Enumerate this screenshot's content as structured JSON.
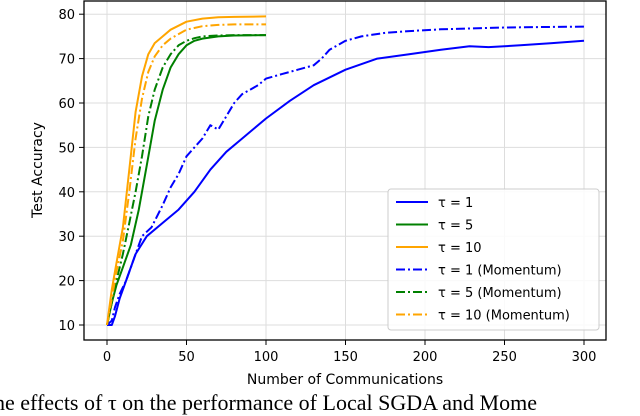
{
  "chart_data": {
    "type": "line",
    "title": "",
    "xlabel": "Number of Communications",
    "ylabel": "Test Accuracy",
    "xlim": [
      -12,
      312
    ],
    "ylim": [
      7,
      82
    ],
    "xticks": [
      0,
      50,
      100,
      150,
      200,
      250,
      300
    ],
    "yticks": [
      10,
      20,
      30,
      40,
      50,
      60,
      70,
      80
    ],
    "grid": true,
    "legend_position": "lower right",
    "series": [
      {
        "name": "τ = 1",
        "color": "#0000ff",
        "style": "solid",
        "x": [
          0,
          3,
          5,
          8,
          12,
          18,
          25,
          35,
          45,
          55,
          65,
          75,
          85,
          100,
          115,
          130,
          150,
          170,
          190,
          210,
          228,
          240,
          260,
          280,
          300
        ],
        "y": [
          10,
          10,
          12,
          16,
          20,
          26,
          30,
          33,
          36,
          40,
          45,
          49,
          52,
          56.5,
          60.5,
          64,
          67.5,
          70,
          71,
          72,
          72.8,
          72.6,
          73,
          73.5,
          74
        ]
      },
      {
        "name": "τ = 5",
        "color": "#008000",
        "style": "solid",
        "x": [
          0,
          3,
          6,
          10,
          15,
          20,
          25,
          30,
          35,
          40,
          45,
          50,
          55,
          60,
          70,
          80,
          100
        ],
        "y": [
          10,
          15,
          19,
          23,
          28,
          36,
          46,
          56,
          63,
          68,
          71,
          73,
          74,
          74.5,
          75,
          75.2,
          75.3
        ]
      },
      {
        "name": "τ = 10",
        "color": "#ffa500",
        "style": "solid",
        "x": [
          0,
          3,
          6,
          10,
          14,
          18,
          22,
          26,
          30,
          35,
          40,
          50,
          60,
          70,
          80,
          100
        ],
        "y": [
          10,
          18,
          24,
          32,
          45,
          58,
          66,
          71,
          73.5,
          75,
          76.5,
          78.3,
          79,
          79.3,
          79.4,
          79.5
        ]
      },
      {
        "name": "τ = 1 (Momentum)",
        "color": "#0000ff",
        "style": "dashdot",
        "x": [
          0,
          3,
          5,
          8,
          12,
          18,
          22,
          28,
          35,
          40,
          45,
          50,
          55,
          60,
          65,
          70,
          75,
          80,
          85,
          90,
          95,
          100,
          110,
          120,
          130,
          135,
          140,
          150,
          160,
          175,
          190,
          210,
          230,
          250,
          270,
          300
        ],
        "y": [
          10,
          11,
          14,
          17,
          20,
          26,
          30,
          32,
          37,
          41,
          44,
          48,
          50,
          52,
          55,
          54,
          57,
          60,
          62,
          63,
          64,
          65.5,
          66.5,
          67.5,
          68.5,
          70,
          72,
          74,
          75,
          75.8,
          76.2,
          76.6,
          76.8,
          77,
          77.1,
          77.2
        ]
      },
      {
        "name": "τ = 5 (Momentum)",
        "color": "#008000",
        "style": "dashdot",
        "x": [
          0,
          3,
          6,
          10,
          14,
          18,
          22,
          26,
          30,
          35,
          40,
          45,
          50,
          55,
          60,
          70,
          80,
          100
        ],
        "y": [
          10,
          15,
          20,
          26,
          33,
          40,
          48,
          57,
          63,
          68,
          71,
          73,
          74,
          74.6,
          75,
          75.2,
          75.3,
          75.3
        ]
      },
      {
        "name": "τ = 10 (Momentum)",
        "color": "#ffa500",
        "style": "dashdot",
        "x": [
          0,
          3,
          6,
          10,
          14,
          18,
          22,
          26,
          30,
          35,
          40,
          50,
          60,
          70,
          80,
          100
        ],
        "y": [
          10,
          16,
          22,
          29,
          40,
          52,
          61,
          67,
          70.5,
          73,
          74.5,
          76.5,
          77.3,
          77.6,
          77.7,
          77.7
        ]
      }
    ]
  },
  "axes": {
    "xlabel": "Number of Communications",
    "ylabel": "Test Accuracy",
    "xtick_labels": [
      "0",
      "50",
      "100",
      "150",
      "200",
      "250",
      "300"
    ],
    "ytick_labels": [
      "10",
      "20",
      "30",
      "40",
      "50",
      "60",
      "70",
      "80"
    ]
  },
  "legend": {
    "items": [
      {
        "label": "τ = 1",
        "color": "#0000ff",
        "style": "solid"
      },
      {
        "label": "τ = 5",
        "color": "#008000",
        "style": "solid"
      },
      {
        "label": "τ = 10",
        "color": "#ffa500",
        "style": "solid"
      },
      {
        "label": "τ = 1 (Momentum)",
        "color": "#0000ff",
        "style": "dashdot"
      },
      {
        "label": "τ = 5 (Momentum)",
        "color": "#008000",
        "style": "dashdot"
      },
      {
        "label": "τ = 10 (Momentum)",
        "color": "#ffa500",
        "style": "dashdot"
      }
    ]
  },
  "caption": {
    "text": "he effects of τ on the performance of Local SGDA and Mome"
  }
}
